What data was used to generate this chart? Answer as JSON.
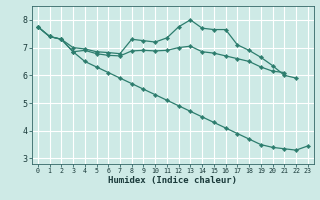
{
  "xlabel": "Humidex (Indice chaleur)",
  "bg_color": "#ceeae6",
  "grid_color": "#ffffff",
  "line_color": "#2d7d6e",
  "ylim": [
    2.8,
    8.5
  ],
  "xlim": [
    -0.5,
    23.5
  ],
  "yticks": [
    3,
    4,
    5,
    6,
    7,
    8
  ],
  "xticks": [
    0,
    1,
    2,
    3,
    4,
    5,
    6,
    7,
    8,
    9,
    10,
    11,
    12,
    13,
    14,
    15,
    16,
    17,
    18,
    19,
    20,
    21,
    22,
    23
  ],
  "series1_x": [
    0,
    1,
    2,
    3,
    4,
    5,
    6,
    7,
    8,
    9,
    10,
    11,
    12,
    13,
    14,
    15,
    16,
    17,
    18,
    19,
    20,
    21,
    22
  ],
  "series1_y": [
    7.75,
    7.4,
    7.3,
    7.0,
    6.95,
    6.85,
    6.82,
    6.78,
    7.3,
    7.25,
    7.2,
    7.35,
    7.75,
    8.0,
    7.7,
    7.65,
    7.65,
    7.1,
    6.9,
    6.65,
    6.35,
    6.0,
    5.9
  ],
  "series2_x": [
    0,
    1,
    2,
    3,
    4,
    5,
    6,
    7,
    8,
    9,
    10,
    11,
    12,
    13,
    14,
    15,
    16,
    17,
    18,
    19,
    20,
    21
  ],
  "series2_y": [
    7.75,
    7.4,
    7.3,
    6.85,
    6.9,
    6.78,
    6.72,
    6.7,
    6.88,
    6.9,
    6.88,
    6.9,
    7.0,
    7.05,
    6.85,
    6.8,
    6.7,
    6.6,
    6.5,
    6.3,
    6.15,
    6.1
  ],
  "series3_x": [
    0,
    1,
    2,
    3,
    4,
    5,
    6,
    7,
    8,
    9,
    10,
    11,
    12,
    13,
    14,
    15,
    16,
    17,
    18,
    19,
    20,
    21,
    22,
    23
  ],
  "series3_y": [
    7.75,
    7.4,
    7.3,
    6.85,
    6.5,
    6.3,
    6.1,
    5.9,
    5.7,
    5.5,
    5.3,
    5.1,
    4.9,
    4.7,
    4.5,
    4.3,
    4.1,
    3.9,
    3.7,
    3.5,
    3.4,
    3.35,
    3.3,
    3.45
  ]
}
